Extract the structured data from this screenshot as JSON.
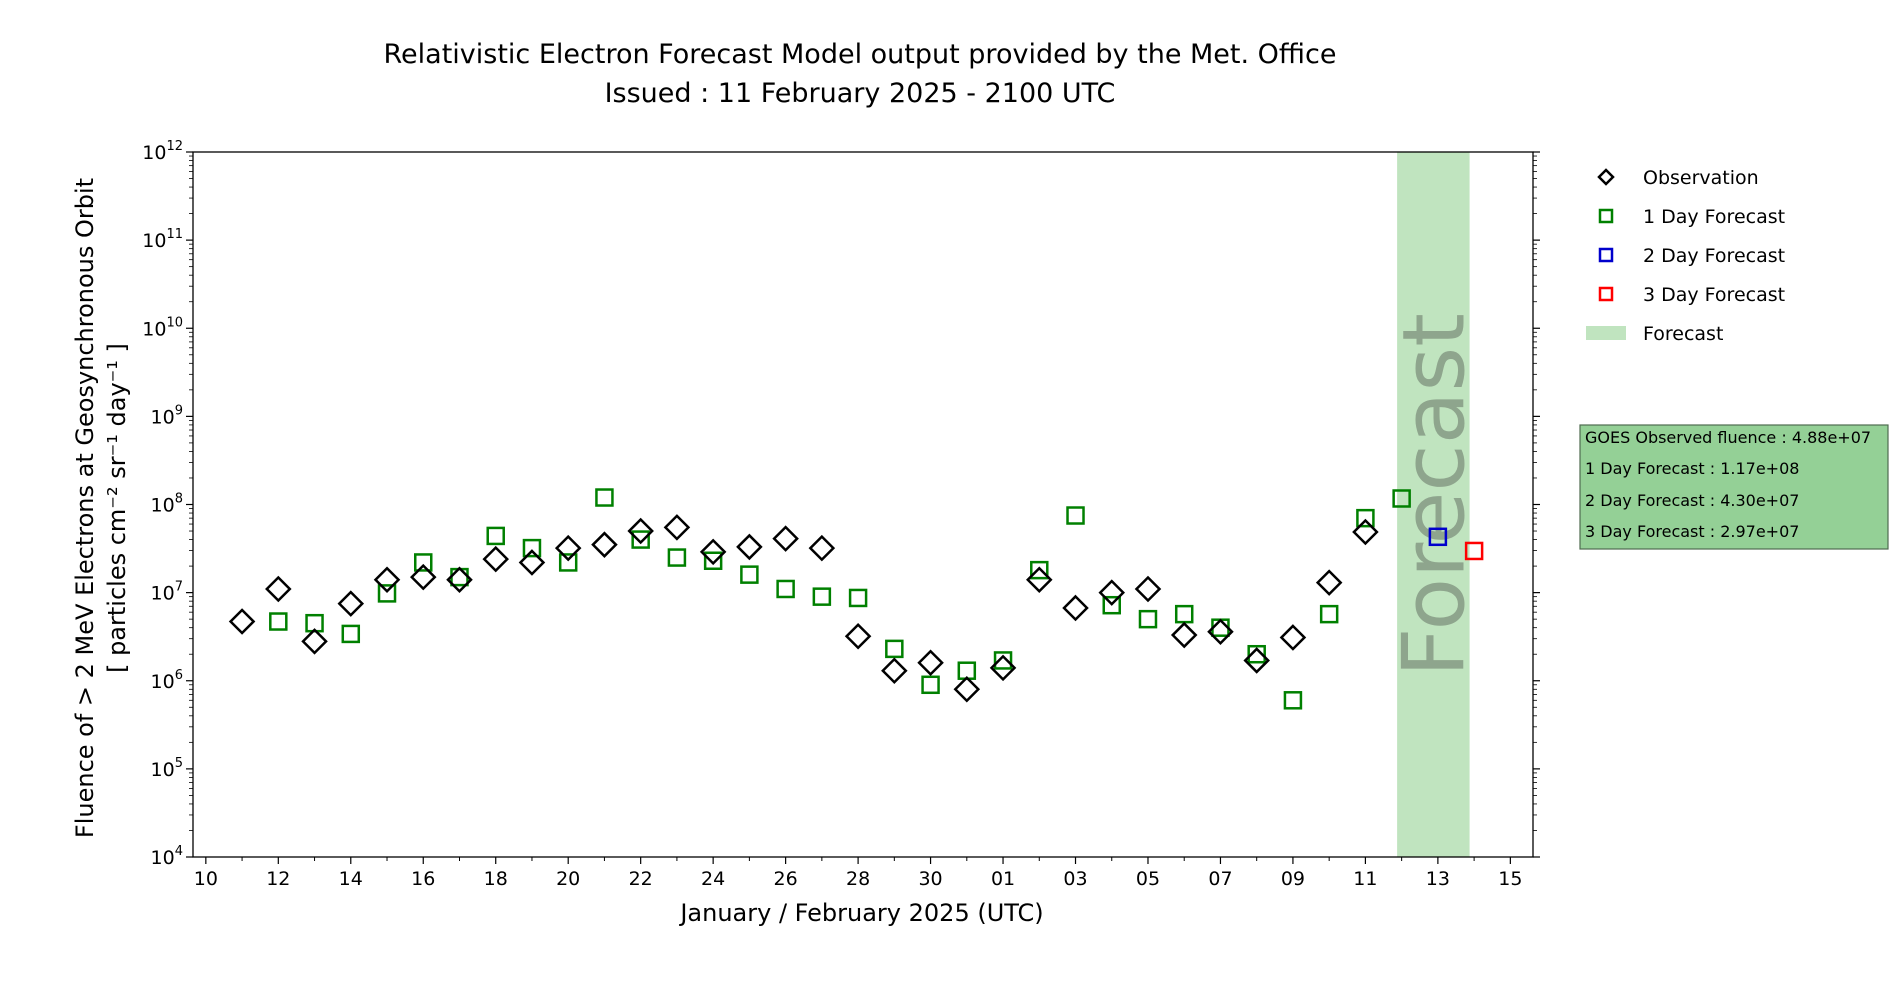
{
  "title_line1": "Relativistic Electron Forecast Model output provided by the Met. Office",
  "title_line2": "Issued : 11 February 2025 - 2100 UTC",
  "xlabel": "January / February 2025 (UTC)",
  "ylabel_line1": "Fluence of > 2 MeV Electrons at Geosynchronous Orbit",
  "ylabel_line2": "[ particles cm⁻² sr⁻¹ day⁻¹ ]",
  "forecast_band_text": "Forecast",
  "legend": [
    {
      "label": "Observation",
      "marker": "diamond",
      "color": "#000000"
    },
    {
      "label": "1 Day Forecast",
      "marker": "square",
      "color": "#008000"
    },
    {
      "label": "2 Day Forecast",
      "marker": "square",
      "color": "#0000cc"
    },
    {
      "label": "3 Day Forecast",
      "marker": "square",
      "color": "#ff0000"
    },
    {
      "label": "Forecast",
      "marker": "band",
      "color": "#c0e4bf"
    }
  ],
  "info_box": {
    "lines": [
      "GOES Observed fluence : 4.88e+07",
      "1 Day Forecast : 1.17e+08",
      "2 Day Forecast : 4.30e+07",
      "3 Day Forecast : 2.97e+07"
    ],
    "background": "#94d096"
  },
  "chart_data": {
    "type": "scatter",
    "title": "Relativistic Electron Forecast Model output provided by the Met. Office",
    "subtitle": "Issued : 11 February 2025 - 2100 UTC",
    "xlabel": "January / February 2025 (UTC)",
    "ylabel": "Fluence of > 2 MeV Electrons at Geosynchronous Orbit [ particles cm⁻² sr⁻¹ day⁻¹ ]",
    "yscale": "log",
    "ylim": [
      10000,
      1000000000000
    ],
    "xlim": [
      "2025-01-09T15:30",
      "2025-02-15T15:00"
    ],
    "x_tick_labels": [
      "10",
      "12",
      "14",
      "16",
      "18",
      "20",
      "22",
      "24",
      "26",
      "28",
      "30",
      "01",
      "03",
      "05",
      "07",
      "09",
      "11",
      "13",
      "15"
    ],
    "x_ticks": [
      "2025-01-10",
      "2025-01-12",
      "2025-01-14",
      "2025-01-16",
      "2025-01-18",
      "2025-01-20",
      "2025-01-22",
      "2025-01-24",
      "2025-01-26",
      "2025-01-28",
      "2025-01-30",
      "2025-02-01",
      "2025-02-03",
      "2025-02-05",
      "2025-02-07",
      "2025-02-09",
      "2025-02-11",
      "2025-02-13",
      "2025-02-15"
    ],
    "y_tick_exponents": [
      4,
      5,
      6,
      7,
      8,
      9,
      10,
      11,
      12
    ],
    "forecast_region": [
      "2025-02-11T21:00",
      "2025-02-13T21:00"
    ],
    "series": [
      {
        "name": "Observation",
        "marker": "diamond",
        "color": "#000000",
        "points": [
          {
            "x": "2025-01-11",
            "y": 4700000.0
          },
          {
            "x": "2025-01-12",
            "y": 11000000.0
          },
          {
            "x": "2025-01-13",
            "y": 2800000.0
          },
          {
            "x": "2025-01-14",
            "y": 7500000.0
          },
          {
            "x": "2025-01-15",
            "y": 14000000.0
          },
          {
            "x": "2025-01-16",
            "y": 15000000.0
          },
          {
            "x": "2025-01-17",
            "y": 14000000.0
          },
          {
            "x": "2025-01-18",
            "y": 24000000.0
          },
          {
            "x": "2025-01-19",
            "y": 22000000.0
          },
          {
            "x": "2025-01-20",
            "y": 32000000.0
          },
          {
            "x": "2025-01-21",
            "y": 35000000.0
          },
          {
            "x": "2025-01-22",
            "y": 50000000.0
          },
          {
            "x": "2025-01-23",
            "y": 55000000.0
          },
          {
            "x": "2025-01-24",
            "y": 29000000.0
          },
          {
            "x": "2025-01-25",
            "y": 33000000.0
          },
          {
            "x": "2025-01-26",
            "y": 41000000.0
          },
          {
            "x": "2025-01-27",
            "y": 32000000.0
          },
          {
            "x": "2025-01-28",
            "y": 3200000.0
          },
          {
            "x": "2025-01-29",
            "y": 1300000.0
          },
          {
            "x": "2025-01-30",
            "y": 1600000.0
          },
          {
            "x": "2025-01-31",
            "y": 800000.0
          },
          {
            "x": "2025-02-01",
            "y": 1400000.0
          },
          {
            "x": "2025-02-02",
            "y": 14000000.0
          },
          {
            "x": "2025-02-03",
            "y": 6700000.0
          },
          {
            "x": "2025-02-04",
            "y": 10000000.0
          },
          {
            "x": "2025-02-05",
            "y": 11000000.0
          },
          {
            "x": "2025-02-06",
            "y": 3300000.0
          },
          {
            "x": "2025-02-07",
            "y": 3600000.0
          },
          {
            "x": "2025-02-08",
            "y": 1700000.0
          },
          {
            "x": "2025-02-09",
            "y": 3100000.0
          },
          {
            "x": "2025-02-10",
            "y": 13000000.0
          },
          {
            "x": "2025-02-11",
            "y": 48800000.0
          }
        ]
      },
      {
        "name": "1 Day Forecast",
        "marker": "square",
        "color": "#008000",
        "points": [
          {
            "x": "2025-01-12",
            "y": 4700000.0
          },
          {
            "x": "2025-01-13",
            "y": 4500000.0
          },
          {
            "x": "2025-01-14",
            "y": 3400000.0
          },
          {
            "x": "2025-01-15",
            "y": 9800000.0
          },
          {
            "x": "2025-01-16",
            "y": 22000000.0
          },
          {
            "x": "2025-01-17",
            "y": 15000000.0
          },
          {
            "x": "2025-01-18",
            "y": 44000000.0
          },
          {
            "x": "2025-01-19",
            "y": 32000000.0
          },
          {
            "x": "2025-01-20",
            "y": 22000000.0
          },
          {
            "x": "2025-01-21",
            "y": 120000000.0
          },
          {
            "x": "2025-01-22",
            "y": 40000000.0
          },
          {
            "x": "2025-01-23",
            "y": 25000000.0
          },
          {
            "x": "2025-01-24",
            "y": 23000000.0
          },
          {
            "x": "2025-01-25",
            "y": 16000000.0
          },
          {
            "x": "2025-01-26",
            "y": 11000000.0
          },
          {
            "x": "2025-01-27",
            "y": 9000000.0
          },
          {
            "x": "2025-01-28",
            "y": 8700000.0
          },
          {
            "x": "2025-01-29",
            "y": 2300000.0
          },
          {
            "x": "2025-01-30",
            "y": 900000.0
          },
          {
            "x": "2025-01-31",
            "y": 1300000.0
          },
          {
            "x": "2025-02-01",
            "y": 1700000.0
          },
          {
            "x": "2025-02-02",
            "y": 18000000.0
          },
          {
            "x": "2025-02-03",
            "y": 75000000.0
          },
          {
            "x": "2025-02-04",
            "y": 7200000.0
          },
          {
            "x": "2025-02-05",
            "y": 5000000.0
          },
          {
            "x": "2025-02-06",
            "y": 5700000.0
          },
          {
            "x": "2025-02-07",
            "y": 4000000.0
          },
          {
            "x": "2025-02-08",
            "y": 2000000.0
          },
          {
            "x": "2025-02-09",
            "y": 600000.0
          },
          {
            "x": "2025-02-10",
            "y": 5700000.0
          },
          {
            "x": "2025-02-11",
            "y": 70000000.0
          },
          {
            "x": "2025-02-12",
            "y": 117000000.0
          }
        ]
      },
      {
        "name": "2 Day Forecast",
        "marker": "square",
        "color": "#0000cc",
        "points": [
          {
            "x": "2025-02-13",
            "y": 43000000.0
          }
        ]
      },
      {
        "name": "3 Day Forecast",
        "marker": "square",
        "color": "#ff0000",
        "points": [
          {
            "x": "2025-02-14",
            "y": 29700000.0
          }
        ]
      }
    ]
  }
}
